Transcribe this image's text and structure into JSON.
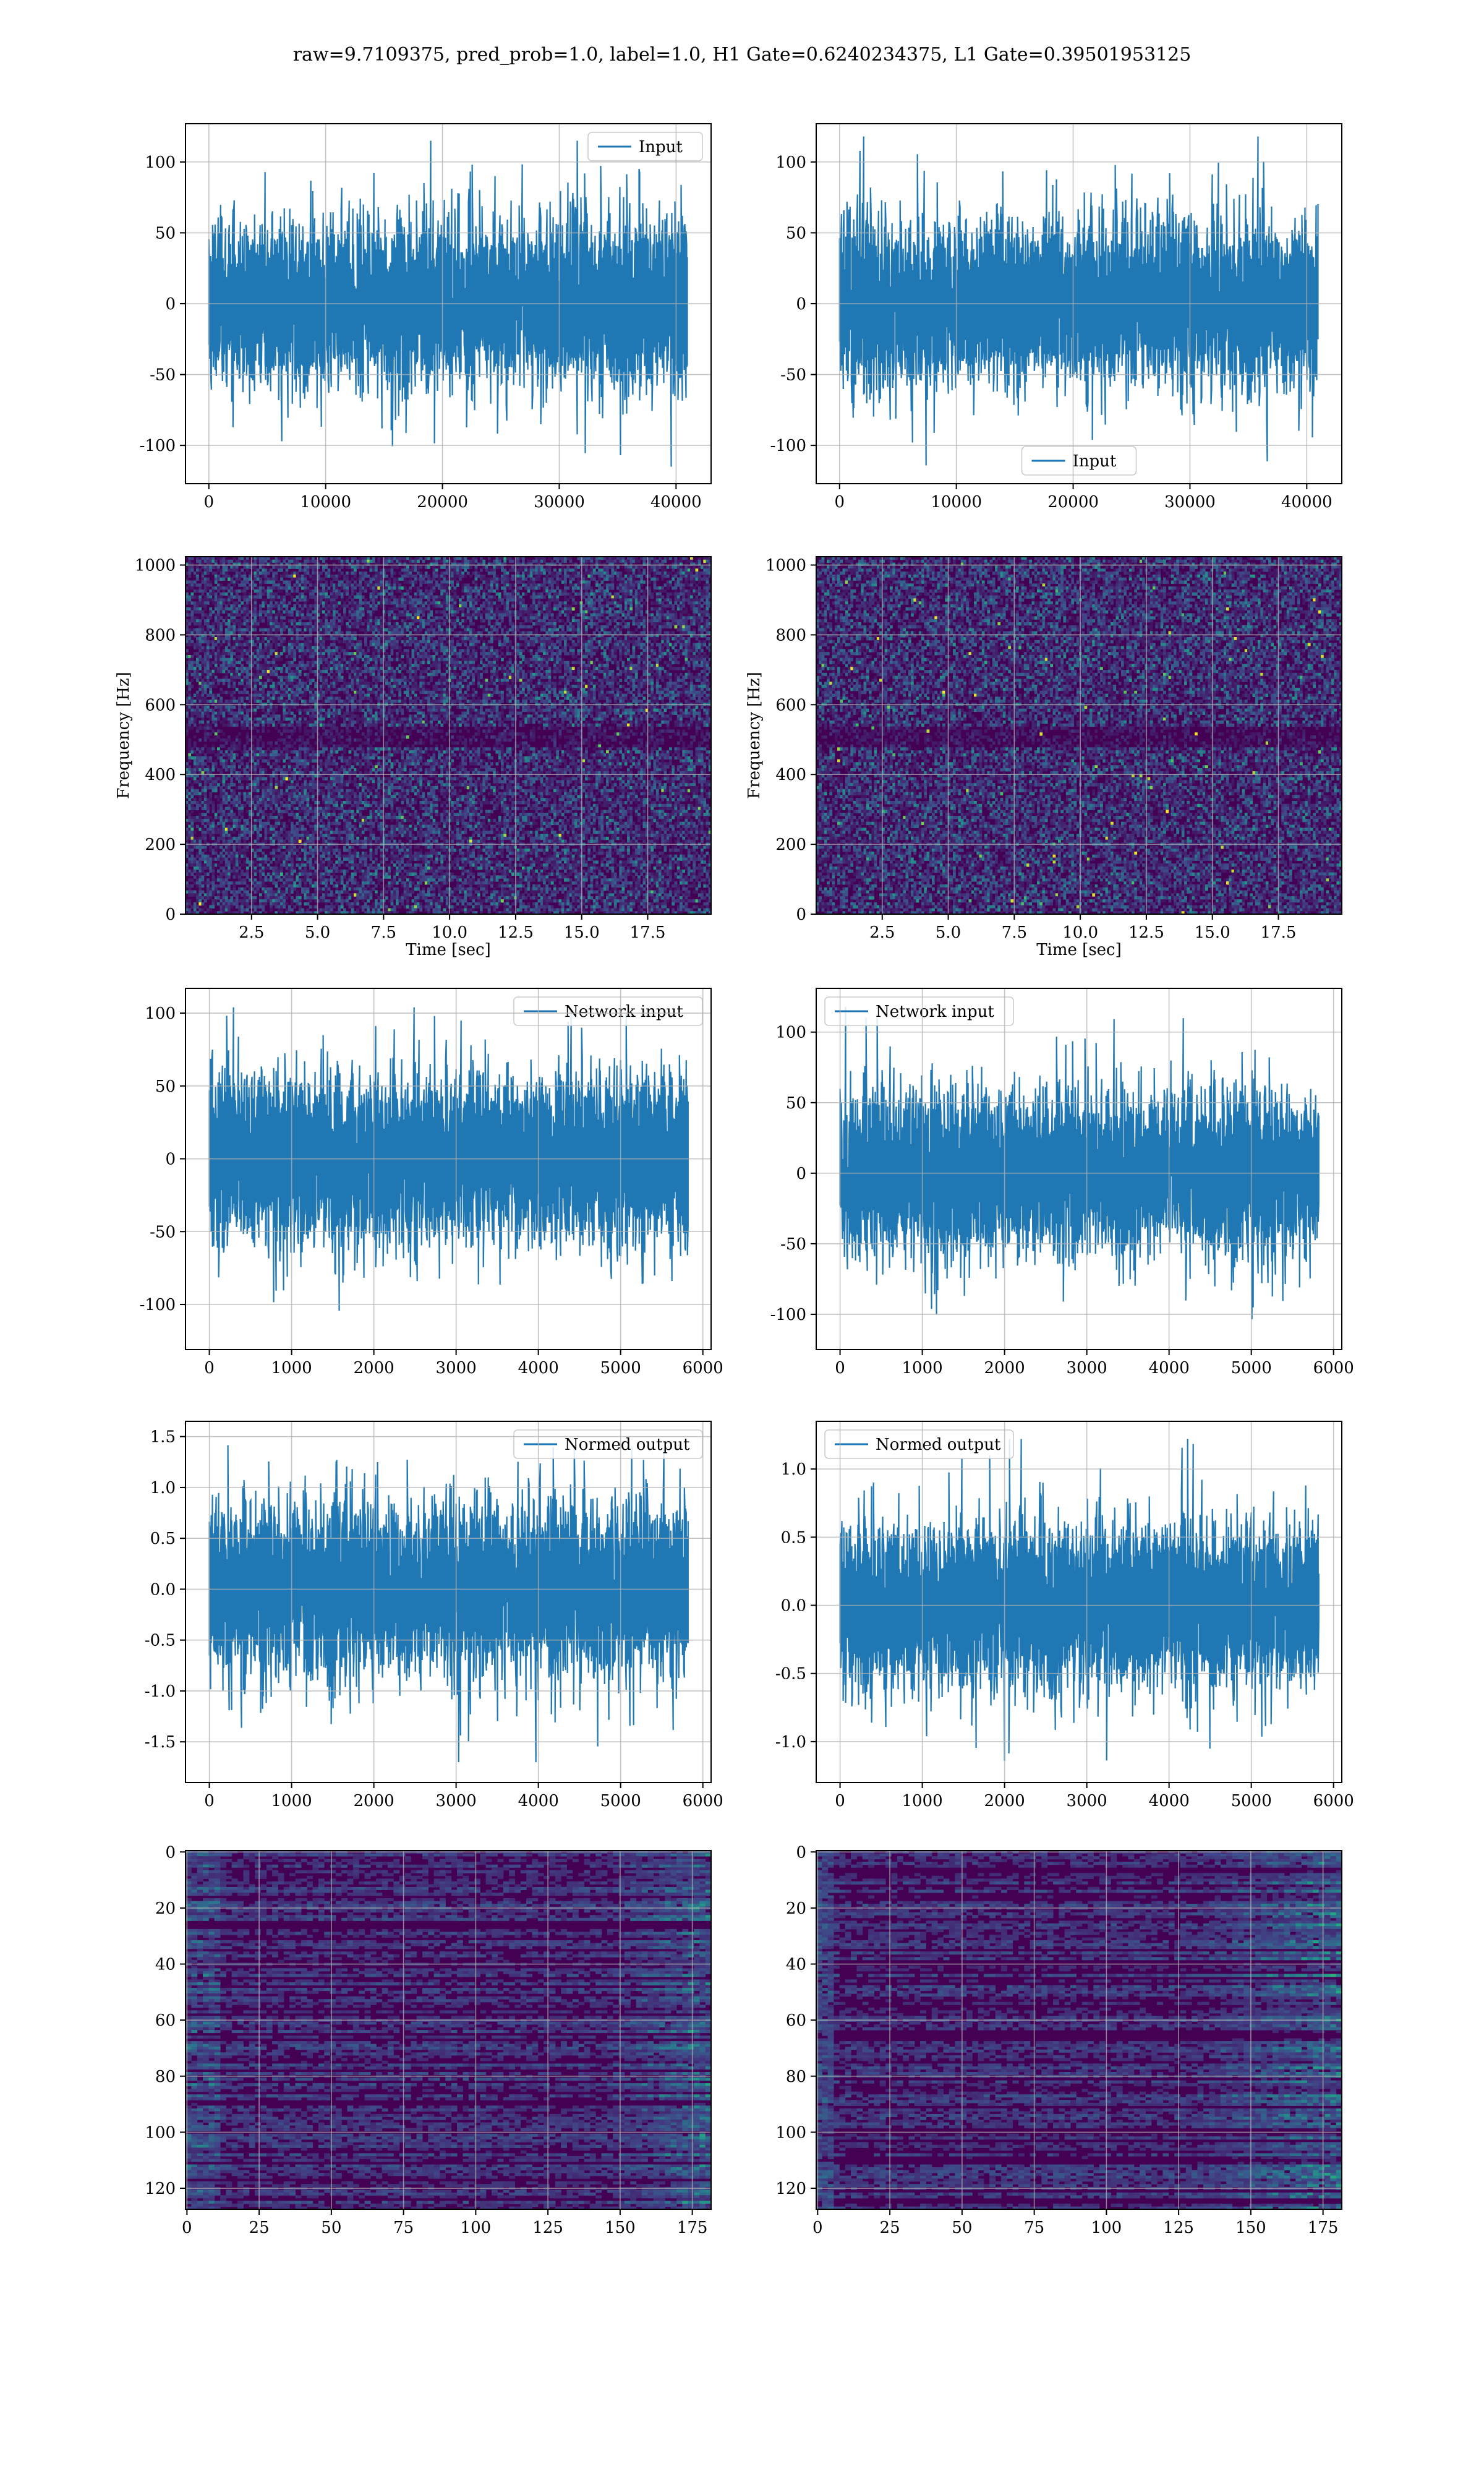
{
  "figure": {
    "suptitle": "raw=9.7109375, pred_prob=1.0, label=1.0, H1 Gate=0.6240234375, L1 Gate=0.39501953125"
  },
  "colors": {
    "line": "#1f77b4",
    "grid": "#b0b0b0",
    "axes": "#000000",
    "viridis_low": "#440154",
    "viridis_mid": "#21918c",
    "viridis_high": "#fde725"
  },
  "chart_data": [
    {
      "id": "h1-input",
      "type": "line",
      "panel": "row1-left",
      "series": [
        {
          "name": "Input",
          "n_points": 40960,
          "y_range_seen": [
            -115,
            115
          ]
        }
      ],
      "xlim": [
        -2000,
        43000
      ],
      "ylim": [
        -127,
        127
      ],
      "xticks": [
        0,
        10000,
        20000,
        30000,
        40000
      ],
      "yticks": [
        -100,
        -50,
        0,
        50,
        100
      ],
      "xlabel": "",
      "ylabel": "",
      "legend": "upper right",
      "grid": true
    },
    {
      "id": "l1-input",
      "type": "line",
      "panel": "row1-right",
      "series": [
        {
          "name": "Input",
          "n_points": 40960,
          "y_range_seen": [
            -115,
            118
          ]
        }
      ],
      "xlim": [
        -2000,
        43000
      ],
      "ylim": [
        -127,
        127
      ],
      "xticks": [
        0,
        10000,
        20000,
        30000,
        40000
      ],
      "yticks": [
        -100,
        -50,
        0,
        50,
        100
      ],
      "xlabel": "",
      "ylabel": "",
      "legend": "lower center",
      "grid": true
    },
    {
      "id": "h1-spectrogram",
      "type": "heatmap",
      "panel": "row2-left",
      "xlim": [
        0,
        19.9
      ],
      "ylim": [
        0,
        1024
      ],
      "xticks": [
        2.5,
        5.0,
        7.5,
        10.0,
        12.5,
        15.0,
        17.5
      ],
      "yticks": [
        0,
        200,
        400,
        600,
        800,
        1000
      ],
      "xlabel": "Time [sec]",
      "ylabel": "Frequency [Hz]",
      "colormap": "viridis",
      "grid": true
    },
    {
      "id": "l1-spectrogram",
      "type": "heatmap",
      "panel": "row2-right",
      "xlim": [
        0,
        19.9
      ],
      "ylim": [
        0,
        1024
      ],
      "xticks": [
        2.5,
        5.0,
        7.5,
        10.0,
        12.5,
        15.0,
        17.5
      ],
      "yticks": [
        0,
        200,
        400,
        600,
        800,
        1000
      ],
      "xlabel": "Time [sec]",
      "ylabel": "Frequency [Hz]",
      "colormap": "viridis",
      "grid": true
    },
    {
      "id": "h1-network-input",
      "type": "line",
      "panel": "row3-left",
      "series": [
        {
          "name": "Network input",
          "n_points": 5820,
          "y_range_seen": [
            -117,
            104
          ]
        }
      ],
      "xlim": [
        -290,
        6100
      ],
      "ylim": [
        -131,
        117
      ],
      "xticks": [
        0,
        1000,
        2000,
        3000,
        4000,
        5000,
        6000
      ],
      "yticks": [
        -100,
        -50,
        0,
        50,
        100
      ],
      "xlabel": "",
      "ylabel": "",
      "legend": "upper right",
      "grid": true
    },
    {
      "id": "l1-network-input",
      "type": "line",
      "panel": "row3-right",
      "series": [
        {
          "name": "Network input",
          "n_points": 5820,
          "y_range_seen": [
            -112,
            118
          ]
        }
      ],
      "xlim": [
        -290,
        6100
      ],
      "ylim": [
        -125,
        131
      ],
      "xticks": [
        0,
        1000,
        2000,
        3000,
        4000,
        5000,
        6000
      ],
      "yticks": [
        -100,
        -50,
        0,
        50,
        100
      ],
      "xlabel": "",
      "ylabel": "",
      "legend": "upper left",
      "grid": true
    },
    {
      "id": "h1-normed-output",
      "type": "line",
      "panel": "row4-left",
      "series": [
        {
          "name": "Normed output",
          "n_points": 5820,
          "y_range_seen": [
            -1.7,
            1.5
          ]
        }
      ],
      "xlim": [
        -290,
        6100
      ],
      "ylim": [
        -1.9,
        1.65
      ],
      "xticks": [
        0,
        1000,
        2000,
        3000,
        4000,
        5000,
        6000
      ],
      "yticks": [
        -1.5,
        -1.0,
        -0.5,
        0.0,
        0.5,
        1.0,
        1.5
      ],
      "xlabel": "",
      "ylabel": "",
      "legend": "upper right",
      "grid": true
    },
    {
      "id": "l1-normed-output",
      "type": "line",
      "panel": "row4-right",
      "series": [
        {
          "name": "Normed output",
          "n_points": 5820,
          "y_range_seen": [
            -1.18,
            1.22
          ]
        }
      ],
      "xlim": [
        -290,
        6100
      ],
      "ylim": [
        -1.3,
        1.35
      ],
      "xticks": [
        0,
        1000,
        2000,
        3000,
        4000,
        5000,
        6000
      ],
      "yticks": [
        -1.0,
        -0.5,
        0.0,
        0.5,
        1.0
      ],
      "xlabel": "",
      "ylabel": "",
      "legend": "upper left",
      "grid": true
    },
    {
      "id": "h1-feature-map",
      "type": "heatmap",
      "panel": "row5-left",
      "xlim": [
        -0.5,
        181.5
      ],
      "ylim": [
        127.5,
        -0.5
      ],
      "xticks": [
        0,
        25,
        50,
        75,
        100,
        125,
        150,
        175
      ],
      "yticks": [
        0,
        20,
        40,
        60,
        80,
        100,
        120
      ],
      "xlabel": "",
      "ylabel": "",
      "colormap": "viridis",
      "grid": true
    },
    {
      "id": "l1-feature-map",
      "type": "heatmap",
      "panel": "row5-right",
      "xlim": [
        -0.5,
        181.5
      ],
      "ylim": [
        127.5,
        -0.5
      ],
      "xticks": [
        0,
        25,
        50,
        75,
        100,
        125,
        150,
        175
      ],
      "yticks": [
        0,
        20,
        40,
        60,
        80,
        100,
        120
      ],
      "xlabel": "",
      "ylabel": "",
      "colormap": "viridis",
      "grid": true
    }
  ]
}
